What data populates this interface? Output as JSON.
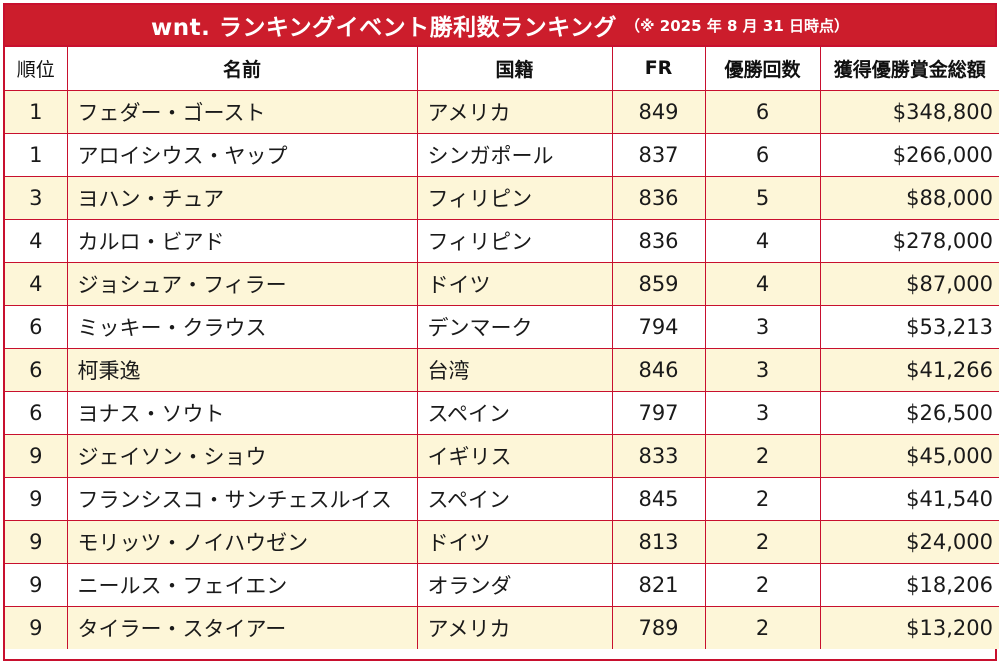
{
  "title": "wnt. ランキングイベント勝利数ランキング",
  "title_note": "（※ 2025 年 8 月 31 日時点）",
  "columns": [
    "順位",
    "名前",
    "国籍",
    "FR",
    "優勝回数",
    "獲得優勝賞金総額"
  ],
  "rows": [
    {
      "rank": "1",
      "name": "フェダー・ゴースト",
      "country": "アメリカ",
      "fr": "849",
      "wins": "6",
      "prize": "$348,800"
    },
    {
      "rank": "1",
      "name": "アロイシウス・ヤップ",
      "country": "シンガポール",
      "fr": "837",
      "wins": "6",
      "prize": "$266,000"
    },
    {
      "rank": "3",
      "name": "ヨハン・チュア",
      "country": "フィリピン",
      "fr": "836",
      "wins": "5",
      "prize": "$88,000"
    },
    {
      "rank": "4",
      "name": "カルロ・ビアド",
      "country": "フィリピン",
      "fr": "836",
      "wins": "4",
      "prize": "$278,000"
    },
    {
      "rank": "4",
      "name": "ジョシュア・フィラー",
      "country": "ドイツ",
      "fr": "859",
      "wins": "4",
      "prize": "$87,000"
    },
    {
      "rank": "6",
      "name": "ミッキー・クラウス",
      "country": "デンマーク",
      "fr": "794",
      "wins": "3",
      "prize": "$53,213"
    },
    {
      "rank": "6",
      "name": "柯秉逸",
      "country": "台湾",
      "fr": "846",
      "wins": "3",
      "prize": "$41,266"
    },
    {
      "rank": "6",
      "name": "ヨナス・ソウト",
      "country": "スペイン",
      "fr": "797",
      "wins": "3",
      "prize": "$26,500"
    },
    {
      "rank": "9",
      "name": "ジェイソン・ショウ",
      "country": "イギリス",
      "fr": "833",
      "wins": "2",
      "prize": "$45,000"
    },
    {
      "rank": "9",
      "name": "フランシスコ・サンチェスルイス",
      "country": "スペイン",
      "fr": "845",
      "wins": "2",
      "prize": "$41,540"
    },
    {
      "rank": "9",
      "name": "モリッツ・ノイハウゼン",
      "country": "ドイツ",
      "fr": "813",
      "wins": "2",
      "prize": "$24,000"
    },
    {
      "rank": "9",
      "name": "ニールス・フェイエン",
      "country": "オランダ",
      "fr": "821",
      "wins": "2",
      "prize": "$18,206"
    },
    {
      "rank": "9",
      "name": "タイラー・スタイアー",
      "country": "アメリカ",
      "fr": "789",
      "wins": "2",
      "prize": "$13,200"
    }
  ],
  "colors": {
    "accent": "#cc1d2c",
    "row_alt": "#fdf6d8",
    "border": "#c8102e"
  }
}
